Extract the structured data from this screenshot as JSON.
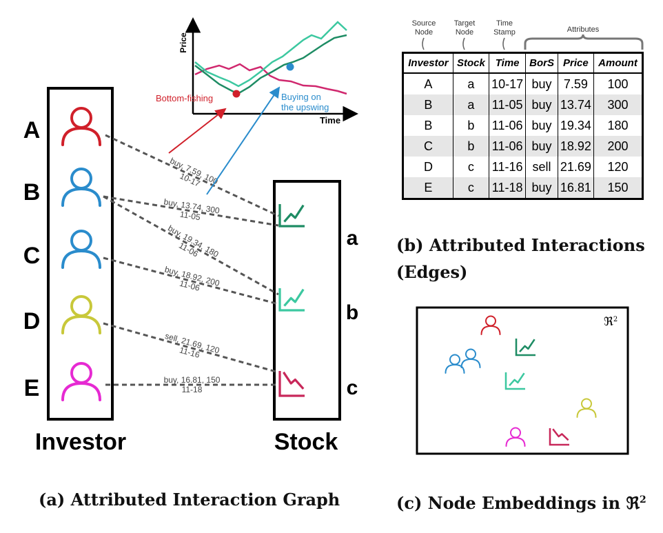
{
  "captions": {
    "a": "(a) Attributed Interaction Graph",
    "b_line1": "(b) Attributed Interactions",
    "b_line2": "(Edges)",
    "c_prefix": "(c) Node Embeddings in ",
    "space_symbol": "ℜ",
    "space_sup": "2"
  },
  "graph": {
    "investor_group_label": "Investor",
    "stock_group_label": "Stock",
    "investors": [
      {
        "id": "A",
        "color": "#d0202a"
      },
      {
        "id": "B",
        "color": "#2a8ccc"
      },
      {
        "id": "C",
        "color": "#2a8ccc"
      },
      {
        "id": "D",
        "color": "#c8c83a"
      },
      {
        "id": "E",
        "color": "#e62ad2"
      }
    ],
    "stocks": [
      {
        "id": "a",
        "color": "#1e8c64",
        "trend": "up"
      },
      {
        "id": "b",
        "color": "#3cc8a0",
        "trend": "up"
      },
      {
        "id": "c",
        "color": "#c8285a",
        "trend": "down"
      }
    ],
    "edges": [
      {
        "from": "A",
        "to": "a",
        "label1": "buy, 7.59, 100",
        "label2": "10-17"
      },
      {
        "from": "B",
        "to": "a",
        "label1": "buy, 13.74, 300",
        "label2": "11-05"
      },
      {
        "from": "B",
        "to": "b",
        "label1": "buy, 19.34, 180",
        "label2": "11-06"
      },
      {
        "from": "C",
        "to": "b",
        "label1": "buy, 18.92, 200",
        "label2": "11-06"
      },
      {
        "from": "D",
        "to": "c",
        "label1": "sell, 21.69, 120",
        "label2": "11-16"
      },
      {
        "from": "E",
        "to": "c",
        "label1": "buy, 16.81, 150",
        "label2": "11-18"
      }
    ]
  },
  "price_chart": {
    "y_label": "Price",
    "x_label": "Time",
    "bottom_label": "Bottom-fishing",
    "upswing_label_1": "Buying on",
    "upswing_label_2": "the upswing",
    "bottom_color": "#d0202a",
    "upswing_color": "#2a8ccc"
  },
  "table": {
    "header_annotations": {
      "source_1": "Source",
      "source_2": "Node",
      "target_1": "Target",
      "target_2": "Node",
      "time_1": "Time",
      "time_2": "Stamp",
      "attributes": "Attributes"
    },
    "columns": [
      "Investor",
      "Stock",
      "Time",
      "BorS",
      "Price",
      "Amount"
    ],
    "rows": [
      [
        "A",
        "a",
        "10-17",
        "buy",
        "7.59",
        "100"
      ],
      [
        "B",
        "a",
        "11-05",
        "buy",
        "13.74",
        "300"
      ],
      [
        "B",
        "b",
        "11-06",
        "buy",
        "19.34",
        "180"
      ],
      [
        "C",
        "b",
        "11-06",
        "buy",
        "18.92",
        "200"
      ],
      [
        "D",
        "c",
        "11-16",
        "sell",
        "21.69",
        "120"
      ],
      [
        "E",
        "c",
        "11-18",
        "buy",
        "16.81",
        "150"
      ]
    ]
  },
  "embedding": {
    "space_label": "ℜ",
    "space_sup": "2",
    "nodes": [
      {
        "kind": "investor",
        "ref": "A",
        "color": "#d0202a"
      },
      {
        "kind": "investor",
        "ref": "B",
        "color": "#2a8ccc"
      },
      {
        "kind": "investor",
        "ref": "C",
        "color": "#2a8ccc"
      },
      {
        "kind": "stock",
        "ref": "a",
        "color": "#1e8c64",
        "trend": "up"
      },
      {
        "kind": "stock",
        "ref": "b",
        "color": "#3cc8a0",
        "trend": "up"
      },
      {
        "kind": "investor",
        "ref": "D",
        "color": "#c8c83a"
      },
      {
        "kind": "investor",
        "ref": "E",
        "color": "#e62ad2"
      },
      {
        "kind": "stock",
        "ref": "c",
        "color": "#c8285a",
        "trend": "down"
      }
    ]
  }
}
